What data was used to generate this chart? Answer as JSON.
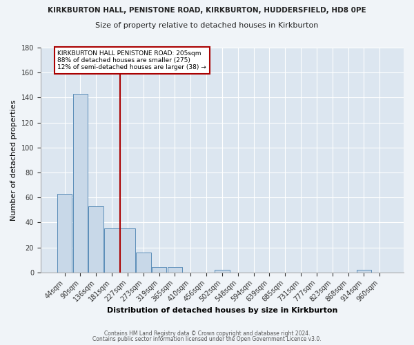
{
  "title1": "KIRKBURTON HALL, PENISTONE ROAD, KIRKBURTON, HUDDERSFIELD, HD8 0PE",
  "title2": "Size of property relative to detached houses in Kirkburton",
  "xlabel": "Distribution of detached houses by size in Kirkburton",
  "ylabel": "Number of detached properties",
  "categories": [
    "44sqm",
    "90sqm",
    "136sqm",
    "181sqm",
    "227sqm",
    "273sqm",
    "319sqm",
    "365sqm",
    "410sqm",
    "456sqm",
    "502sqm",
    "548sqm",
    "594sqm",
    "639sqm",
    "685sqm",
    "731sqm",
    "777sqm",
    "823sqm",
    "868sqm",
    "914sqm",
    "960sqm"
  ],
  "values": [
    63,
    143,
    53,
    35,
    35,
    16,
    4,
    4,
    0,
    0,
    2,
    0,
    0,
    0,
    0,
    0,
    0,
    0,
    0,
    2,
    0
  ],
  "bar_color": "#c8d8e8",
  "bar_edge_color": "#5b8db8",
  "vertical_line_color": "#aa0000",
  "annotation_line1": "KIRKBURTON HALL PENISTONE ROAD: 205sqm",
  "annotation_line2": "88% of detached houses are smaller (275)",
  "annotation_line3": "12% of semi-detached houses are larger (38) →",
  "annotation_box_color": "#ffffff",
  "annotation_box_edge": "#aa0000",
  "ylim": [
    0,
    180
  ],
  "yticks": [
    0,
    20,
    40,
    60,
    80,
    100,
    120,
    140,
    160,
    180
  ],
  "footer1": "Contains HM Land Registry data © Crown copyright and database right 2024.",
  "footer2": "Contains public sector information licensed under the Open Government Licence v3.0.",
  "fig_bg_color": "#f0f4f8",
  "plot_bg_color": "#dce6f0"
}
